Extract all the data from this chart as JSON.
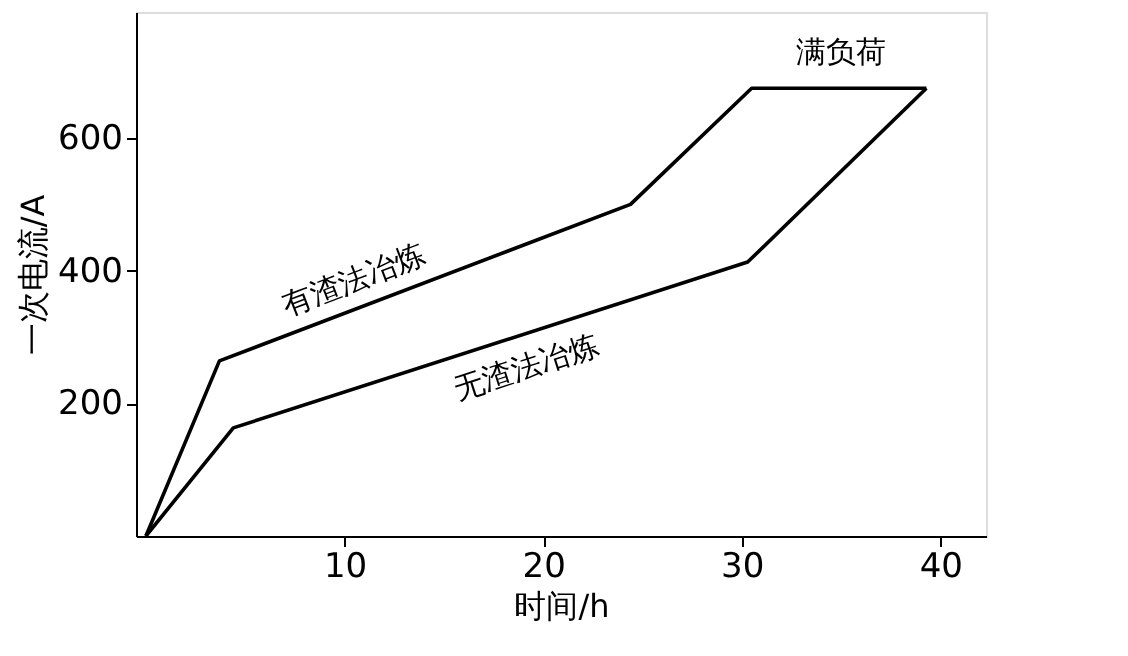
{
  "chart_data": {
    "type": "line",
    "xlabel": "时间/h",
    "ylabel": "一次电流/A",
    "series": [
      {
        "name": "有渣法冶炼",
        "color": "#000000",
        "x": [
          0,
          3.7,
          24.4,
          30.5,
          39.3
        ],
        "values": [
          0,
          264,
          500,
          675,
          675
        ]
      },
      {
        "name": "无渣法冶炼",
        "color": "#000000",
        "x": [
          0,
          4.4,
          30.3,
          39.3
        ],
        "values": [
          0,
          163,
          413,
          675
        ]
      }
    ],
    "annotations": [
      {
        "text": "满负荷",
        "x": 35,
        "y": 675
      }
    ],
    "xlim": [
      -0.5,
      42.3
    ],
    "ylim": [
      0,
      790
    ],
    "xticks": [
      10,
      20,
      30,
      40
    ],
    "yticks": [
      200,
      400,
      600
    ],
    "grid": false,
    "marker": "none",
    "line_style": "solid"
  }
}
